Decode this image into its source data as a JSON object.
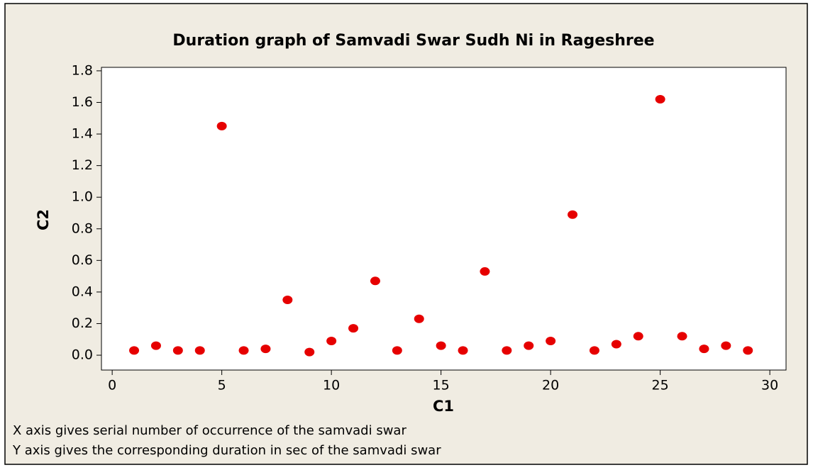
{
  "chart_data": {
    "type": "scatter",
    "title": "Duration graph of Samvadi Swar Sudh Ni  in Rageshree",
    "x_label": "C1",
    "y_label": "C2",
    "x": [
      1,
      2,
      3,
      4,
      5,
      6,
      7,
      8,
      9,
      10,
      11,
      12,
      13,
      14,
      15,
      16,
      17,
      18,
      19,
      20,
      21,
      22,
      23,
      24,
      25,
      26,
      27,
      28,
      29
    ],
    "series": [
      {
        "color": "#e60000",
        "values": [
          0.03,
          0.06,
          0.03,
          0.03,
          1.45,
          0.03,
          0.04,
          0.35,
          0.02,
          0.09,
          0.17,
          0.47,
          0.03,
          0.23,
          0.06,
          0.03,
          0.53,
          0.03,
          0.06,
          0.09,
          0.89,
          0.03,
          0.07,
          0.12,
          1.62,
          0.12,
          0.04,
          0.06,
          0.03
        ]
      }
    ],
    "xlim": [
      -0.49,
      30.74
    ],
    "ylim": [
      -0.094,
      1.822
    ],
    "xticks": [
      0,
      5,
      10,
      15,
      20,
      25,
      30
    ],
    "yticks": [
      {
        "value": 0,
        "label": "0.0"
      },
      0.2,
      0.4,
      0.6,
      0.8,
      {
        "value": 1,
        "label": "1.0"
      },
      1.2,
      1.4,
      1.6,
      1.8
    ],
    "notes": [
      "X axis gives serial number of occurrence of the samvadi swar",
      "Y axis gives the corresponding duration in sec of the samvadi swar"
    ]
  }
}
